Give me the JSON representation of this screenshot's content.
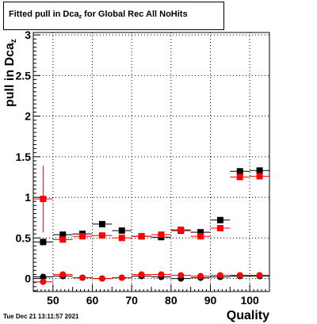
{
  "chart_data": {
    "type": "scatter",
    "title_prefix": "Fitted pull in Dca",
    "title_sub": "z",
    "title_suffix": " for Global Rec All NoHits",
    "xlabel": "Quality",
    "ylabel_prefix": "pull in Dca",
    "ylabel_sub": "z",
    "xlim": [
      45,
      105
    ],
    "ylim": [
      -0.16,
      3.03
    ],
    "xticks": [
      50,
      60,
      70,
      80,
      90,
      100
    ],
    "yticks": [
      0,
      0.5,
      1,
      1.5,
      2,
      2.5,
      3
    ],
    "ytick_labels": [
      "0",
      "0.5",
      "1",
      "1.5",
      "2",
      "2.5",
      "3"
    ],
    "grid": true,
    "series": [
      {
        "marker": "square",
        "color": "#000000",
        "x": [
          47.5,
          52.5,
          57.5,
          62.5,
          67.5,
          72.5,
          77.5,
          82.5,
          87.5,
          92.5,
          97.5,
          102.5
        ],
        "y": [
          0.45,
          0.54,
          0.55,
          0.67,
          0.59,
          0.52,
          0.51,
          0.59,
          0.57,
          0.72,
          1.32,
          1.33
        ],
        "yerr": [
          0.03,
          0.02,
          0.02,
          0.02,
          0.02,
          0.02,
          0.02,
          0.02,
          0.02,
          0.02,
          0.02,
          0.02
        ]
      },
      {
        "marker": "square",
        "color": "#ff0000",
        "x": [
          47.5,
          52.5,
          57.5,
          62.5,
          67.5,
          72.5,
          77.5,
          82.5,
          87.5,
          92.5,
          97.5,
          102.5
        ],
        "y": [
          0.98,
          0.48,
          0.52,
          0.53,
          0.5,
          0.52,
          0.54,
          0.6,
          0.52,
          0.62,
          1.25,
          1.26
        ],
        "yerr": [
          0.41,
          0.03,
          0.02,
          0.02,
          0.02,
          0.02,
          0.02,
          0.02,
          0.02,
          0.02,
          0.02,
          0.02
        ]
      },
      {
        "marker": "circle",
        "color": "#000000",
        "x": [
          47.5,
          52.5,
          57.5,
          62.5,
          67.5,
          72.5,
          77.5,
          82.5,
          87.5,
          92.5,
          97.5,
          102.5
        ],
        "y": [
          0.02,
          0.03,
          0.01,
          0.0,
          0.01,
          0.03,
          0.02,
          0.0,
          0.01,
          0.02,
          0.03,
          0.03
        ],
        "yerr": [
          0.02,
          0.02,
          0.01,
          0.01,
          0.01,
          0.01,
          0.01,
          0.01,
          0.01,
          0.01,
          0.01,
          0.01
        ]
      },
      {
        "marker": "circle",
        "color": "#ff0000",
        "x": [
          47.5,
          52.5,
          57.5,
          62.5,
          67.5,
          72.5,
          77.5,
          82.5,
          87.5,
          92.5,
          97.5,
          102.5
        ],
        "y": [
          -0.04,
          0.05,
          0.01,
          0.0,
          0.01,
          0.05,
          0.05,
          0.04,
          0.03,
          0.04,
          0.04,
          0.04
        ],
        "yerr": [
          0.04,
          0.02,
          0.01,
          0.01,
          0.01,
          0.01,
          0.01,
          0.01,
          0.01,
          0.01,
          0.01,
          0.01
        ]
      }
    ]
  },
  "footer": {
    "timestamp": "Tue Dec 21 13:11:57 2021"
  }
}
